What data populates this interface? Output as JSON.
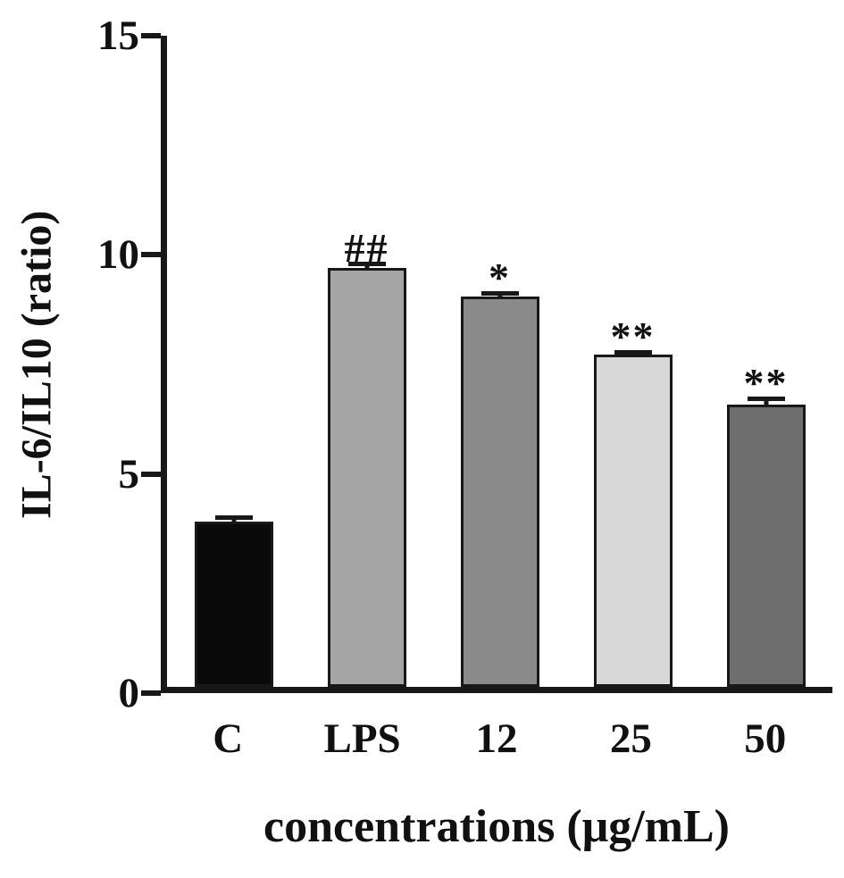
{
  "chart_data": {
    "type": "bar",
    "title": "",
    "categories": [
      "C",
      "LPS",
      "12",
      "25",
      "50"
    ],
    "values": [
      3.8,
      9.65,
      9.0,
      7.65,
      6.5
    ],
    "errors": [
      0.15,
      0.15,
      0.12,
      0.1,
      0.18
    ],
    "annotations": [
      "",
      "##",
      "*",
      "**",
      "**"
    ],
    "bar_colors": [
      "#0a0a0a",
      "#a6a6a6",
      "#8a8a8a",
      "#d8d8d8",
      "#6e6e6e"
    ],
    "axis_color": "#181818",
    "xlabel": "concentrations (μg/mL)",
    "ylabel": "IL-6/IL10 (ratio)",
    "ylim": [
      0,
      15
    ],
    "yticks": [
      0,
      5,
      10,
      15
    ],
    "grid": false,
    "legend": "none"
  }
}
